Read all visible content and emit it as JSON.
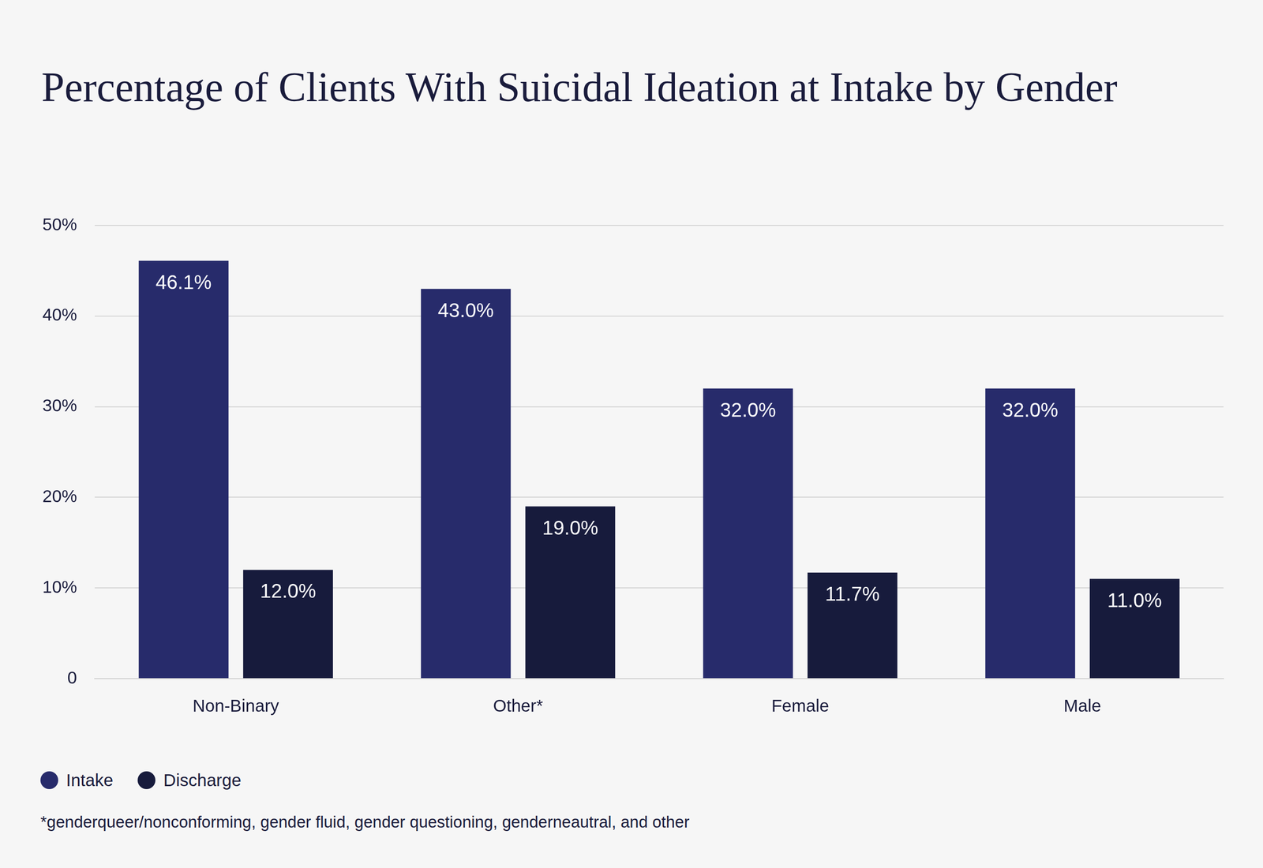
{
  "chart_data": {
    "type": "bar",
    "title": "Percentage of Clients With Suicidal Ideation at Intake by Gender",
    "categories": [
      "Non-Binary",
      "Other*",
      "Female",
      "Male"
    ],
    "series": [
      {
        "name": "Intake",
        "color": "#272b6b",
        "values": [
          46.1,
          43.0,
          32.0,
          32.0
        ],
        "value_labels": [
          "46.1%",
          "43.0%",
          "32.0%",
          "32.0%"
        ]
      },
      {
        "name": "Discharge",
        "color": "#171b3c",
        "values": [
          12.0,
          19.0,
          11.7,
          11.0
        ],
        "value_labels": [
          "12.0%",
          "19.0%",
          "11.7%",
          "11.0%"
        ]
      }
    ],
    "ylim": [
      0,
      50
    ],
    "yticks": [
      0,
      {
        "value": 10,
        "label": "10%"
      },
      {
        "value": 20,
        "label": "20%"
      },
      {
        "value": 30,
        "label": "30%"
      },
      {
        "value": 40,
        "label": "40%"
      },
      {
        "value": 50,
        "label": "50%"
      }
    ],
    "grid": true,
    "legend": "bottom-left",
    "data_labels": true,
    "annotations": [
      "*genderqueer/nonconforming, gender fluid, gender questioning, genderneautral, and other"
    ]
  }
}
